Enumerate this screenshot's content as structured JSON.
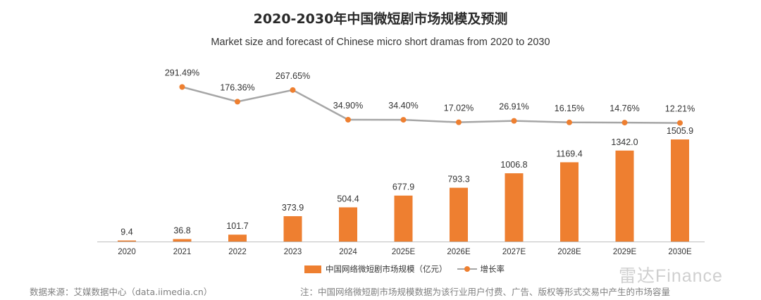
{
  "header": {
    "title": "2020-2030年中国微短剧市场规模及预测",
    "subtitle": "Market size and forecast of Chinese micro short dramas from 2020 to 2030"
  },
  "chart_data": {
    "type": "bar",
    "categories": [
      "2020",
      "2021",
      "2022",
      "2023",
      "2024",
      "2025E",
      "2026E",
      "2027E",
      "2028E",
      "2029E",
      "2030E"
    ],
    "series": [
      {
        "name": "中国网络微短剧市场规模（亿元）",
        "type": "bar",
        "values": [
          9.4,
          36.8,
          101.7,
          373.9,
          504.4,
          677.9,
          793.3,
          1006.8,
          1169.4,
          1342.0,
          1505.9
        ],
        "labels": [
          "9.4",
          "36.8",
          "101.7",
          "373.9",
          "504.4",
          "677.9",
          "793.3",
          "1006.8",
          "1169.4",
          "1342.0",
          "1505.9"
        ],
        "color": "#ee7f30"
      },
      {
        "name": "增长率",
        "type": "line",
        "values": [
          null,
          291.49,
          176.36,
          267.65,
          34.9,
          34.4,
          17.02,
          26.91,
          16.15,
          14.76,
          12.21
        ],
        "labels": [
          "",
          "291.49%",
          "176.36%",
          "267.65%",
          "34.90%",
          "34.40%",
          "17.02%",
          "26.91%",
          "16.15%",
          "14.76%",
          "12.21%"
        ],
        "color": "#a6a6a6",
        "marker_color": "#ee7f30"
      }
    ],
    "legend": "bottom-center",
    "grid": false
  },
  "footer": {
    "source": "数据来源：艾媒数据中心（data.iimedia.cn）",
    "note": "注：中国网络微短剧市场规模数据为该行业用户付费、广告、版权等形式交易中产生的市场容量"
  },
  "watermark": "雷达Finance"
}
